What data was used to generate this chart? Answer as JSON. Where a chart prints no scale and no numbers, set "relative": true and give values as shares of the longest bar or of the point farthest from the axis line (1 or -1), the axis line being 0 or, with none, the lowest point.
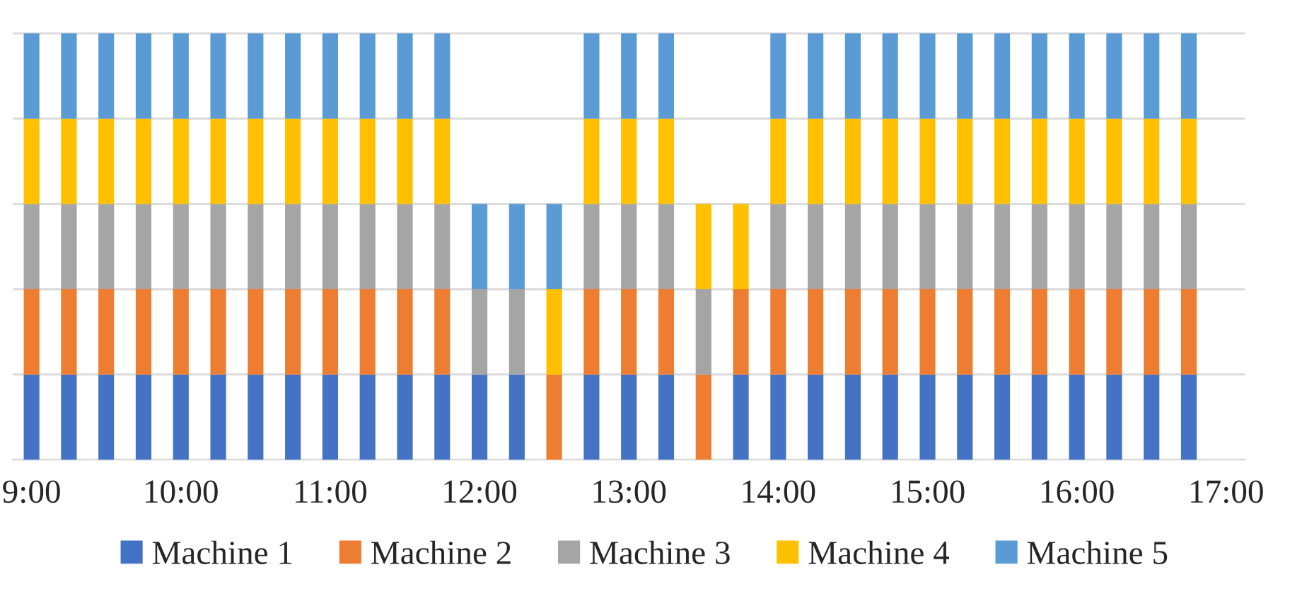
{
  "chart_data": {
    "type": "bar",
    "stacked": true,
    "relative": true,
    "grid": "y",
    "legend": "bottom",
    "categories": [
      "9:00",
      null,
      null,
      null,
      "10:00",
      null,
      null,
      null,
      "11:00",
      null,
      null,
      null,
      "12:00",
      null,
      null,
      null,
      "13:00",
      null,
      null,
      null,
      "14:00",
      null,
      null,
      null,
      "15:00",
      null,
      null,
      null,
      "16:00",
      null,
      null,
      null,
      "17:00"
    ],
    "series": [
      {
        "name": "Machine 1",
        "color": "#4472c4",
        "values": [
          0.2,
          0.2,
          0.2,
          0.2,
          0.2,
          0.2,
          0.2,
          0.2,
          0.2,
          0.2,
          0.2,
          0.2,
          0.2,
          0.2,
          null,
          0.2,
          0.2,
          0.2,
          null,
          0.2,
          0.2,
          0.2,
          0.2,
          0.2,
          0.2,
          0.2,
          0.2,
          0.2,
          0.2,
          0.2,
          0.2,
          0.2,
          null
        ]
      },
      {
        "name": "Machine 2",
        "color": "#ed7d31",
        "values": [
          0.2,
          0.2,
          0.2,
          0.2,
          0.2,
          0.2,
          0.2,
          0.2,
          0.2,
          0.2,
          0.2,
          0.2,
          null,
          null,
          0.2,
          0.2,
          0.2,
          0.2,
          0.2,
          0.2,
          0.2,
          0.2,
          0.2,
          0.2,
          0.2,
          0.2,
          0.2,
          0.2,
          0.2,
          0.2,
          0.2,
          0.2,
          null
        ]
      },
      {
        "name": "Machine 3",
        "color": "#a5a5a5",
        "values": [
          0.2,
          0.2,
          0.2,
          0.2,
          0.2,
          0.2,
          0.2,
          0.2,
          0.2,
          0.2,
          0.2,
          0.2,
          0.2,
          0.2,
          null,
          0.2,
          0.2,
          0.2,
          0.2,
          null,
          0.2,
          0.2,
          0.2,
          0.2,
          0.2,
          0.2,
          0.2,
          0.2,
          0.2,
          0.2,
          0.2,
          0.2,
          null
        ]
      },
      {
        "name": "Machine 4",
        "color": "#ffc000",
        "values": [
          0.2,
          0.2,
          0.2,
          0.2,
          0.2,
          0.2,
          0.2,
          0.2,
          0.2,
          0.2,
          0.2,
          0.2,
          null,
          null,
          0.2,
          0.2,
          0.2,
          0.2,
          0.2,
          0.2,
          0.2,
          0.2,
          0.2,
          0.2,
          0.2,
          0.2,
          0.2,
          0.2,
          0.2,
          0.2,
          0.2,
          0.2,
          null
        ]
      },
      {
        "name": "Machine 5",
        "color": "#5b9bd5",
        "values": [
          0.2,
          0.2,
          0.2,
          0.2,
          0.2,
          0.2,
          0.2,
          0.2,
          0.2,
          0.2,
          0.2,
          0.2,
          0.2,
          0.2,
          0.2,
          0.2,
          0.2,
          0.2,
          null,
          null,
          0.2,
          0.2,
          0.2,
          0.2,
          0.2,
          0.2,
          0.2,
          0.2,
          0.2,
          0.2,
          0.2,
          0.2,
          null
        ]
      }
    ]
  }
}
